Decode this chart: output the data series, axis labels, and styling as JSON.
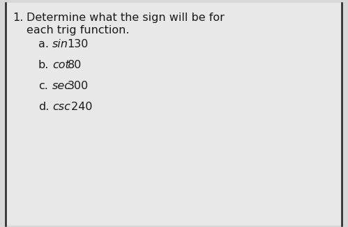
{
  "background_color": "#d8d8d8",
  "inner_background": "#e8e8e8",
  "border_color": "#222222",
  "text_color": "#1a1a1a",
  "header_number": "1.",
  "header_line1": "Determine what the sign will be for",
  "header_line2": "each trig function.",
  "items": [
    {
      "label": "a.",
      "italic_part": "sin",
      "normal_part": "130"
    },
    {
      "label": "b.",
      "italic_part": "cot",
      "normal_part": "80"
    },
    {
      "label": "c.",
      "italic_part": "sec",
      "normal_part": "300"
    },
    {
      "label": "d.",
      "italic_part": "csc",
      "normal_part": " 240"
    }
  ],
  "header_fontsize": 11.5,
  "item_fontsize": 11.5
}
